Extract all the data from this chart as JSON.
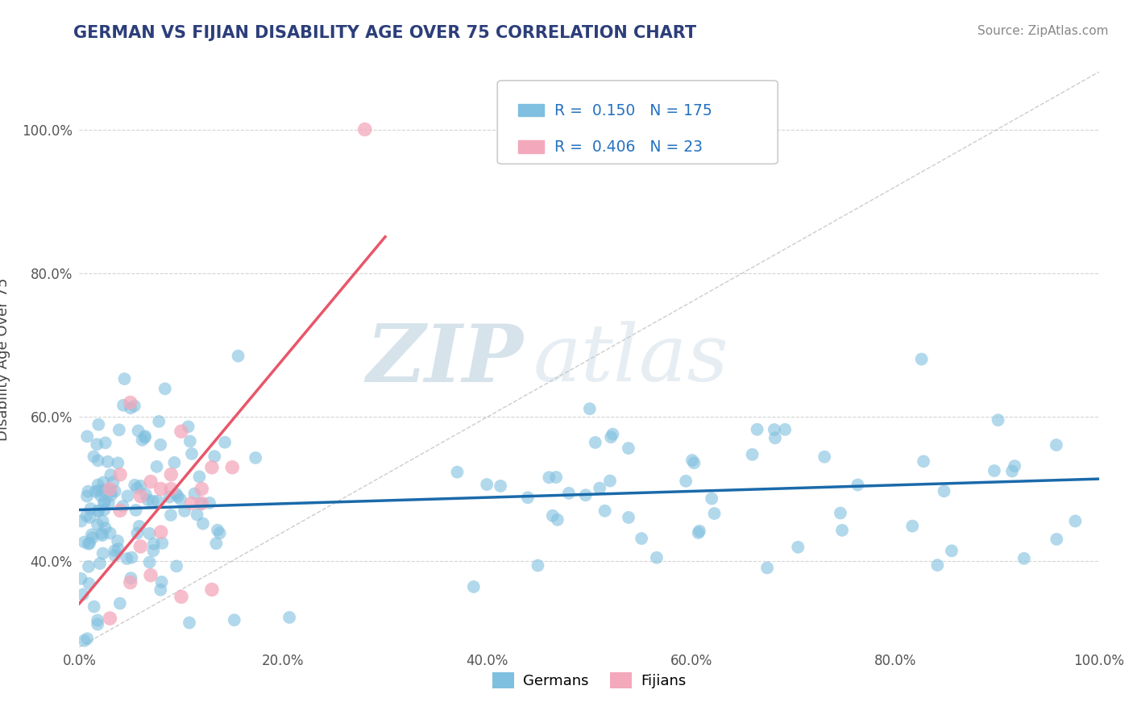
{
  "title": "GERMAN VS FIJIAN DISABILITY AGE OVER 75 CORRELATION CHART",
  "source_text": "Source: ZipAtlas.com",
  "ylabel": "Disability Age Over 75",
  "watermark_zip": "ZIP",
  "watermark_atlas": "atlas",
  "legend_entries": [
    {
      "label": "Germans",
      "color": "#7fbfdf",
      "R": 0.15,
      "N": 175
    },
    {
      "label": "Fijians",
      "color": "#f4a8bc",
      "R": 0.406,
      "N": 23
    }
  ],
  "german_color": "#7fbfdf",
  "fijian_color": "#f4a8bc",
  "german_line_color": "#1a6aaa",
  "fijian_line_color": "#e8566a",
  "xlim": [
    0.0,
    1.0
  ],
  "ylim_low": 0.28,
  "ylim_high": 1.08,
  "xticks": [
    0.0,
    0.2,
    0.4,
    0.6,
    0.8,
    1.0
  ],
  "yticks": [
    0.4,
    0.6,
    0.8,
    1.0
  ],
  "background_color": "#ffffff",
  "grid_color": "#d0d0d0",
  "title_color": "#2c3e7a",
  "seed": 99
}
